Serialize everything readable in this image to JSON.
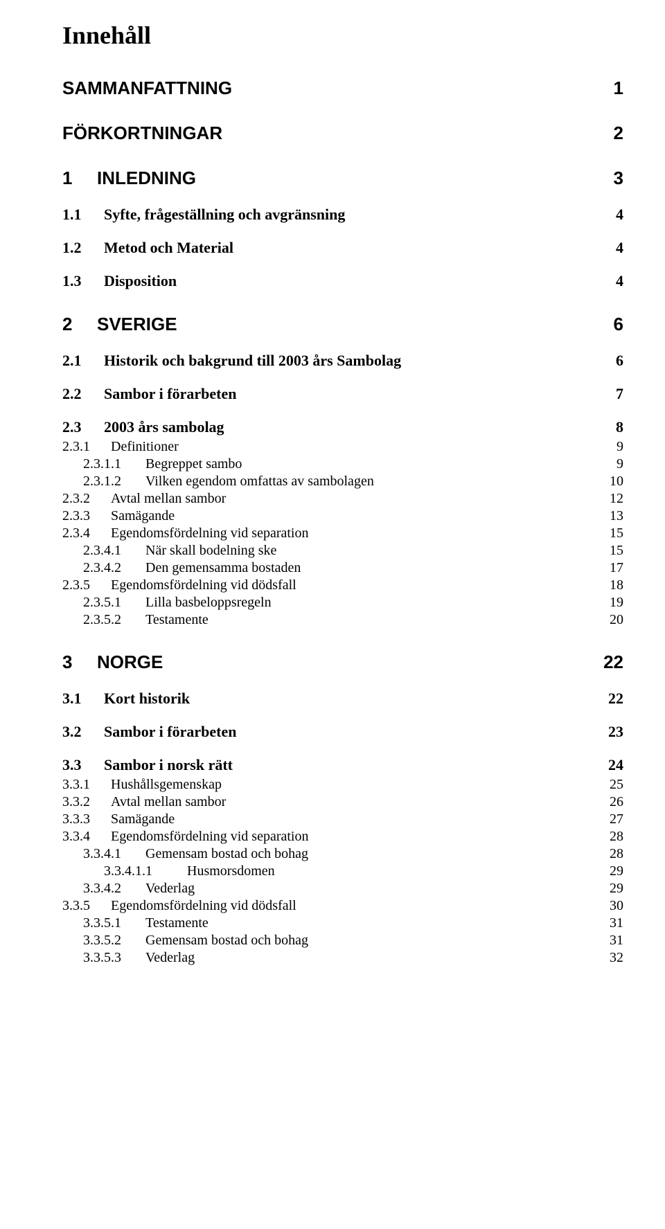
{
  "doc_title": "Innehåll",
  "toc": [
    {
      "level": "h1",
      "num": "",
      "text": "SAMMANFATTNING",
      "page": "1"
    },
    {
      "level": "h1",
      "num": "",
      "text": "FÖRKORTNINGAR",
      "page": "2"
    },
    {
      "level": "h2",
      "num": "1",
      "text": "INLEDNING",
      "page": "3"
    },
    {
      "level": "h3",
      "num": "1.1",
      "text": "Syfte, frågeställning och avgränsning",
      "page": "4"
    },
    {
      "level": "h3",
      "num": "1.2",
      "text": "Metod och Material",
      "page": "4"
    },
    {
      "level": "h3",
      "num": "1.3",
      "text": "Disposition",
      "page": "4"
    },
    {
      "level": "h2",
      "num": "2",
      "text": "SVERIGE",
      "page": "6"
    },
    {
      "level": "h3",
      "num": "2.1",
      "text": "Historik och bakgrund till 2003 års Sambolag",
      "page": "6"
    },
    {
      "level": "h3",
      "num": "2.2",
      "text": "Sambor i förarbeten",
      "page": "7"
    },
    {
      "level": "h3",
      "num": "2.3",
      "text": "2003 års sambolag",
      "page": "8"
    },
    {
      "level": "h4",
      "num": "2.3.1",
      "text": "Definitioner",
      "page": "9"
    },
    {
      "level": "h5",
      "num": "2.3.1.1",
      "text": "Begreppet sambo",
      "page": "9"
    },
    {
      "level": "h5",
      "num": "2.3.1.2",
      "text": "Vilken egendom omfattas av sambolagen",
      "page": "10"
    },
    {
      "level": "h4",
      "num": "2.3.2",
      "text": "Avtal mellan sambor",
      "page": "12"
    },
    {
      "level": "h4",
      "num": "2.3.3",
      "text": "Samägande",
      "page": "13"
    },
    {
      "level": "h4",
      "num": "2.3.4",
      "text": "Egendomsfördelning vid separation",
      "page": "15"
    },
    {
      "level": "h5",
      "num": "2.3.4.1",
      "text": "När skall bodelning ske",
      "page": "15"
    },
    {
      "level": "h5",
      "num": "2.3.4.2",
      "text": "Den gemensamma bostaden",
      "page": "17"
    },
    {
      "level": "h4",
      "num": "2.3.5",
      "text": "Egendomsfördelning vid dödsfall",
      "page": "18"
    },
    {
      "level": "h5",
      "num": "2.3.5.1",
      "text": "Lilla basbeloppsregeln",
      "page": "19"
    },
    {
      "level": "h5",
      "num": "2.3.5.2",
      "text": "Testamente",
      "page": "20"
    },
    {
      "level": "h2",
      "num": "3",
      "text": "NORGE",
      "page": "22"
    },
    {
      "level": "h3",
      "num": "3.1",
      "text": "Kort historik",
      "page": "22"
    },
    {
      "level": "h3",
      "num": "3.2",
      "text": "Sambor i förarbeten",
      "page": "23"
    },
    {
      "level": "h3",
      "num": "3.3",
      "text": "Sambor i norsk rätt",
      "page": "24"
    },
    {
      "level": "h4",
      "num": "3.3.1",
      "text": "Hushållsgemenskap",
      "page": "25"
    },
    {
      "level": "h4",
      "num": "3.3.2",
      "text": "Avtal mellan sambor",
      "page": "26"
    },
    {
      "level": "h4",
      "num": "3.3.3",
      "text": "Samägande",
      "page": "27"
    },
    {
      "level": "h4",
      "num": "3.3.4",
      "text": "Egendomsfördelning vid separation",
      "page": "28"
    },
    {
      "level": "h5",
      "num": "3.3.4.1",
      "text": "Gemensam bostad och bohag",
      "page": "28"
    },
    {
      "level": "h6",
      "num": "3.3.4.1.1",
      "text": "Husmorsdomen",
      "page": "29"
    },
    {
      "level": "h5",
      "num": "3.3.4.2",
      "text": "Vederlag",
      "page": "29"
    },
    {
      "level": "h4",
      "num": "3.3.5",
      "text": "Egendomsfördelning vid dödsfall",
      "page": "30"
    },
    {
      "level": "h5",
      "num": "3.3.5.1",
      "text": "Testamente",
      "page": "31"
    },
    {
      "level": "h5",
      "num": "3.3.5.2",
      "text": "Gemensam bostad och bohag",
      "page": "31"
    },
    {
      "level": "h5",
      "num": "3.3.5.3",
      "text": "Vederlag",
      "page": "32"
    }
  ]
}
